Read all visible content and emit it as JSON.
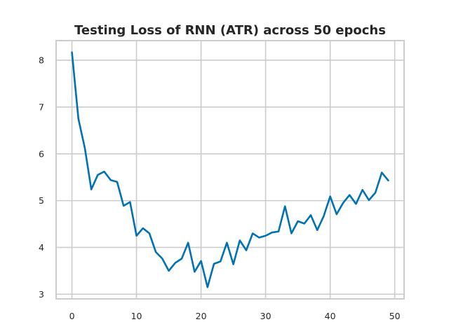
{
  "chart_data": {
    "type": "line",
    "title": "Testing Loss of RNN (ATR) across 50 epochs",
    "xlabel": "",
    "ylabel": "",
    "xlim": [
      -2.45,
      51.45
    ],
    "ylim": [
      2.9,
      8.42
    ],
    "x_ticks": [
      0,
      10,
      20,
      30,
      40,
      50
    ],
    "y_ticks": [
      3,
      4,
      5,
      6,
      7,
      8
    ],
    "grid": true,
    "series": [
      {
        "name": "Testing Loss",
        "color": "#0072b2",
        "x": [
          0,
          1,
          2,
          3,
          4,
          5,
          6,
          7,
          8,
          9,
          10,
          11,
          12,
          13,
          14,
          15,
          16,
          17,
          18,
          19,
          20,
          21,
          22,
          23,
          24,
          25,
          26,
          27,
          28,
          29,
          30,
          31,
          32,
          33,
          34,
          35,
          36,
          37,
          38,
          39,
          40,
          41,
          42,
          43,
          44,
          45,
          46,
          47,
          48,
          49
        ],
        "values": [
          8.17,
          6.75,
          6.12,
          5.24,
          5.55,
          5.62,
          5.44,
          5.4,
          4.89,
          4.97,
          4.25,
          4.41,
          4.3,
          3.9,
          3.76,
          3.5,
          3.67,
          3.76,
          4.1,
          3.48,
          3.71,
          3.15,
          3.65,
          3.7,
          4.1,
          3.64,
          4.15,
          3.94,
          4.3,
          4.21,
          4.25,
          4.32,
          4.34,
          4.88,
          4.3,
          4.56,
          4.51,
          4.69,
          4.37,
          4.67,
          5.09,
          4.71,
          4.95,
          5.12,
          4.93,
          5.23,
          5.01,
          5.17,
          5.6,
          5.43
        ]
      }
    ]
  }
}
